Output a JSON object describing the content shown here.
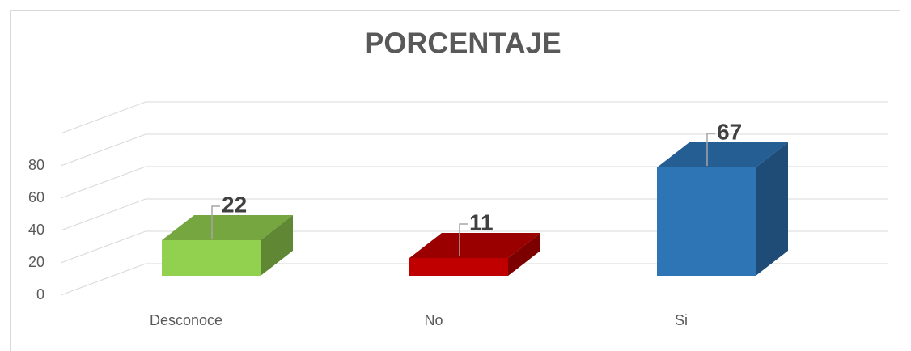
{
  "chart_data": {
    "type": "bar3d",
    "title": "PORCENTAJE",
    "categories": [
      "Desconoce",
      "No",
      "Si"
    ],
    "values": [
      22,
      11,
      67
    ],
    "colors": [
      "#92d050",
      "#c00000",
      "#2e75b6"
    ],
    "ylim": [
      0,
      100
    ],
    "yticks": [
      0,
      20,
      40,
      60,
      80
    ],
    "grid": true
  }
}
